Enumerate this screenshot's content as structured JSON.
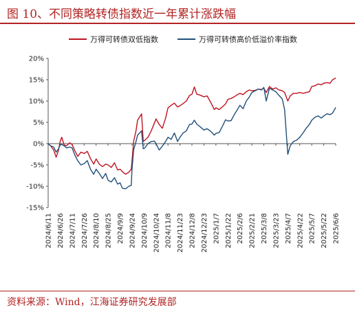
{
  "title": "图 10、不同策略转债指数近一年累计涨跌幅",
  "source": "资料来源：Wind，江海证券研究发展部",
  "colors": {
    "title": "#b22222",
    "series1": "#c0111f",
    "series2": "#1f4e79"
  },
  "chart_data": {
    "type": "line",
    "ylim": [
      -15,
      20
    ],
    "yticks": [
      -15,
      -10,
      -5,
      0,
      5,
      10,
      15,
      20
    ],
    "ytick_labels": [
      "-15%",
      "-10%",
      "-5%",
      "0%",
      "5%",
      "10%",
      "15%",
      "20%"
    ],
    "xlim": [
      "2024-06-11",
      "2025-06-06"
    ],
    "x_tick_labels": [
      "2024/6/11",
      "2024/6/26",
      "2024/7/11",
      "2024/7/26",
      "2024/8/10",
      "2024/8/25",
      "2024/9/9",
      "2024/9/24",
      "2024/10/9",
      "2024/10/24",
      "2024/11/8",
      "2024/11/23",
      "2024/12/8",
      "2024/12/23",
      "2025/1/7",
      "2025/1/22",
      "2025/2/6",
      "2025/2/21",
      "2025/3/8",
      "2025/3/23",
      "2025/4/7",
      "2025/4/22",
      "2025/5/7",
      "2025/5/22",
      "2025/6/6"
    ],
    "legend_position": "top",
    "grid": false,
    "series": [
      {
        "name": "万得可转债双低指数",
        "color": "#c0111f",
        "points": [
          [
            "2024-06-11",
            0
          ],
          [
            "2024-06-14",
            -0.5
          ],
          [
            "2024-06-18",
            -1.5
          ],
          [
            "2024-06-21",
            -3.2
          ],
          [
            "2024-06-24",
            -1.5
          ],
          [
            "2024-06-26",
            0.5
          ],
          [
            "2024-06-28",
            1.5
          ],
          [
            "2024-07-01",
            -0.3
          ],
          [
            "2024-07-04",
            -0.5
          ],
          [
            "2024-07-08",
            0.2
          ],
          [
            "2024-07-11",
            -0.2
          ],
          [
            "2024-07-14",
            -1.5
          ],
          [
            "2024-07-18",
            -3
          ],
          [
            "2024-07-22",
            -2
          ],
          [
            "2024-07-26",
            -2.3
          ],
          [
            "2024-07-30",
            -1.8
          ],
          [
            "2024-08-03",
            -3.5
          ],
          [
            "2024-08-07",
            -4.8
          ],
          [
            "2024-08-10",
            -3.6
          ],
          [
            "2024-08-14",
            -4.8
          ],
          [
            "2024-08-18",
            -5.4
          ],
          [
            "2024-08-22",
            -4.8
          ],
          [
            "2024-08-25",
            -5.0
          ],
          [
            "2024-08-29",
            -5.6
          ],
          [
            "2024-09-02",
            -4.5
          ],
          [
            "2024-09-06",
            -6.2
          ],
          [
            "2024-09-09",
            -6.0
          ],
          [
            "2024-09-12",
            -6.6
          ],
          [
            "2024-09-16",
            -7.2
          ],
          [
            "2024-09-20",
            -6.7
          ],
          [
            "2024-09-23",
            -6.0
          ],
          [
            "2024-09-24",
            -4.0
          ],
          [
            "2024-09-26",
            0.5
          ],
          [
            "2024-09-29",
            3.0
          ],
          [
            "2024-10-01",
            5.5
          ],
          [
            "2024-10-06",
            7.0
          ],
          [
            "2024-10-08",
            0.5
          ],
          [
            "2024-10-10",
            0.8
          ],
          [
            "2024-10-14",
            1.5
          ],
          [
            "2024-10-18",
            3.0
          ],
          [
            "2024-10-22",
            4.8
          ],
          [
            "2024-10-24",
            5.8
          ],
          [
            "2024-10-28",
            4.5
          ],
          [
            "2024-11-01",
            3.6
          ],
          [
            "2024-11-05",
            6.0
          ],
          [
            "2024-11-08",
            8.4
          ],
          [
            "2024-11-12",
            9.0
          ],
          [
            "2024-11-16",
            9.5
          ],
          [
            "2024-11-20",
            8.6
          ],
          [
            "2024-11-23",
            8.9
          ],
          [
            "2024-11-27",
            9.4
          ],
          [
            "2024-12-01",
            10.0
          ],
          [
            "2024-12-05",
            11.3
          ],
          [
            "2024-12-08",
            11.6
          ],
          [
            "2024-12-11",
            13.3
          ],
          [
            "2024-12-14",
            11.6
          ],
          [
            "2024-12-18",
            11.4
          ],
          [
            "2024-12-23",
            11.0
          ],
          [
            "2024-12-27",
            11.2
          ],
          [
            "2025-01-01",
            9.5
          ],
          [
            "2025-01-05",
            8.0
          ],
          [
            "2025-01-07",
            8.4
          ],
          [
            "2025-01-11",
            8.0
          ],
          [
            "2025-01-15",
            8.6
          ],
          [
            "2025-01-19",
            9.3
          ],
          [
            "2025-01-22",
            10.4
          ],
          [
            "2025-01-26",
            10.6
          ],
          [
            "2025-01-30",
            11.0
          ],
          [
            "2025-02-03",
            11.5
          ],
          [
            "2025-02-06",
            11.8
          ],
          [
            "2025-02-10",
            11.5
          ],
          [
            "2025-02-14",
            12.2
          ],
          [
            "2025-02-18",
            12.6
          ],
          [
            "2025-02-21",
            12.4
          ],
          [
            "2025-02-25",
            12.5
          ],
          [
            "2025-03-01",
            12.8
          ],
          [
            "2025-03-05",
            12.7
          ],
          [
            "2025-03-08",
            13.0
          ],
          [
            "2025-03-11",
            12.0
          ],
          [
            "2025-03-15",
            13.4
          ],
          [
            "2025-03-19",
            12.8
          ],
          [
            "2025-03-23",
            13.1
          ],
          [
            "2025-03-27",
            12.6
          ],
          [
            "2025-03-31",
            12.4
          ],
          [
            "2025-04-03",
            12.0
          ],
          [
            "2025-04-07",
            10.0
          ],
          [
            "2025-04-10",
            11.2
          ],
          [
            "2025-04-14",
            11.8
          ],
          [
            "2025-04-18",
            11.8
          ],
          [
            "2025-04-22",
            12.0
          ],
          [
            "2025-04-26",
            11.8
          ],
          [
            "2025-04-30",
            12.0
          ],
          [
            "2025-05-04",
            12.2
          ],
          [
            "2025-05-07",
            13.4
          ],
          [
            "2025-05-11",
            13.6
          ],
          [
            "2025-05-15",
            14.0
          ],
          [
            "2025-05-19",
            13.8
          ],
          [
            "2025-05-22",
            14.2
          ],
          [
            "2025-05-26",
            14.3
          ],
          [
            "2025-05-30",
            14.2
          ],
          [
            "2025-06-02",
            15.0
          ],
          [
            "2025-06-06",
            15.4
          ]
        ]
      },
      {
        "name": "万得可转债高价低溢价率指数",
        "color": "#1f4e79",
        "points": [
          [
            "2024-06-11",
            0
          ],
          [
            "2024-06-14",
            -0.5
          ],
          [
            "2024-06-18",
            -0.8
          ],
          [
            "2024-06-21",
            -2.0
          ],
          [
            "2024-06-24",
            -1.2
          ],
          [
            "2024-06-26",
            -0.3
          ],
          [
            "2024-06-28",
            -0.2
          ],
          [
            "2024-07-01",
            -0.5
          ],
          [
            "2024-07-04",
            -1.0
          ],
          [
            "2024-07-08",
            -0.8
          ],
          [
            "2024-07-11",
            -1.0
          ],
          [
            "2024-07-14",
            -2.5
          ],
          [
            "2024-07-18",
            -4.0
          ],
          [
            "2024-07-22",
            -5.0
          ],
          [
            "2024-07-26",
            -4.7
          ],
          [
            "2024-07-30",
            -4.0
          ],
          [
            "2024-08-03",
            -6.0
          ],
          [
            "2024-08-07",
            -7.2
          ],
          [
            "2024-08-10",
            -6.0
          ],
          [
            "2024-08-14",
            -7.0
          ],
          [
            "2024-08-18",
            -8.2
          ],
          [
            "2024-08-22",
            -7.0
          ],
          [
            "2024-08-25",
            -8.6
          ],
          [
            "2024-08-29",
            -9.0
          ],
          [
            "2024-09-02",
            -8.0
          ],
          [
            "2024-09-06",
            -9.5
          ],
          [
            "2024-09-09",
            -9.2
          ],
          [
            "2024-09-12",
            -10.5
          ],
          [
            "2024-09-16",
            -10.6
          ],
          [
            "2024-09-20",
            -10.0
          ],
          [
            "2024-09-23",
            -9.8
          ],
          [
            "2024-09-24",
            -6.0
          ],
          [
            "2024-09-26",
            -1.5
          ],
          [
            "2024-09-29",
            0.5
          ],
          [
            "2024-10-01",
            2.0
          ],
          [
            "2024-10-06",
            3.0
          ],
          [
            "2024-10-08",
            -1.2
          ],
          [
            "2024-10-10",
            -1.0
          ],
          [
            "2024-10-14",
            0.0
          ],
          [
            "2024-10-18",
            0.5
          ],
          [
            "2024-10-22",
            0.6
          ],
          [
            "2024-10-24",
            0.0
          ],
          [
            "2024-10-28",
            -1.5
          ],
          [
            "2024-11-01",
            -0.6
          ],
          [
            "2024-11-05",
            0.5
          ],
          [
            "2024-11-08",
            1.5
          ],
          [
            "2024-11-12",
            1.0
          ],
          [
            "2024-11-16",
            2.5
          ],
          [
            "2024-11-20",
            0.5
          ],
          [
            "2024-11-23",
            1.5
          ],
          [
            "2024-11-27",
            2.5
          ],
          [
            "2024-12-01",
            3.0
          ],
          [
            "2024-12-05",
            4.5
          ],
          [
            "2024-12-08",
            4.6
          ],
          [
            "2024-12-11",
            5.5
          ],
          [
            "2024-12-14",
            4.6
          ],
          [
            "2024-12-18",
            4.0
          ],
          [
            "2024-12-23",
            3.2
          ],
          [
            "2024-12-27",
            3.5
          ],
          [
            "2025-01-01",
            2.8
          ],
          [
            "2025-01-05",
            2.0
          ],
          [
            "2025-01-07",
            2.4
          ],
          [
            "2025-01-11",
            2.6
          ],
          [
            "2025-01-15",
            4.0
          ],
          [
            "2025-01-19",
            5.6
          ],
          [
            "2025-01-22",
            5.3
          ],
          [
            "2025-01-26",
            5.4
          ],
          [
            "2025-01-30",
            6.8
          ],
          [
            "2025-02-03",
            8.0
          ],
          [
            "2025-02-06",
            9.0
          ],
          [
            "2025-02-10",
            8.2
          ],
          [
            "2025-02-14",
            10.0
          ],
          [
            "2025-02-18",
            11.0
          ],
          [
            "2025-02-21",
            12.0
          ],
          [
            "2025-02-25",
            12.4
          ],
          [
            "2025-03-01",
            12.8
          ],
          [
            "2025-03-05",
            12.6
          ],
          [
            "2025-03-08",
            13.2
          ],
          [
            "2025-03-11",
            10.0
          ],
          [
            "2025-03-15",
            13.0
          ],
          [
            "2025-03-19",
            12.6
          ],
          [
            "2025-03-23",
            12.2
          ],
          [
            "2025-03-27",
            11.3
          ],
          [
            "2025-03-31",
            10.5
          ],
          [
            "2025-04-03",
            8.0
          ],
          [
            "2025-04-07",
            -2.5
          ],
          [
            "2025-04-10",
            -0.5
          ],
          [
            "2025-04-14",
            0.5
          ],
          [
            "2025-04-18",
            0.8
          ],
          [
            "2025-04-22",
            1.5
          ],
          [
            "2025-04-26",
            2.5
          ],
          [
            "2025-04-30",
            3.6
          ],
          [
            "2025-05-04",
            4.5
          ],
          [
            "2025-05-07",
            5.5
          ],
          [
            "2025-05-11",
            6.2
          ],
          [
            "2025-05-15",
            6.5
          ],
          [
            "2025-05-19",
            6.0
          ],
          [
            "2025-05-22",
            6.5
          ],
          [
            "2025-05-26",
            7.0
          ],
          [
            "2025-05-30",
            6.8
          ],
          [
            "2025-06-02",
            7.2
          ],
          [
            "2025-06-06",
            8.5
          ]
        ]
      }
    ]
  }
}
